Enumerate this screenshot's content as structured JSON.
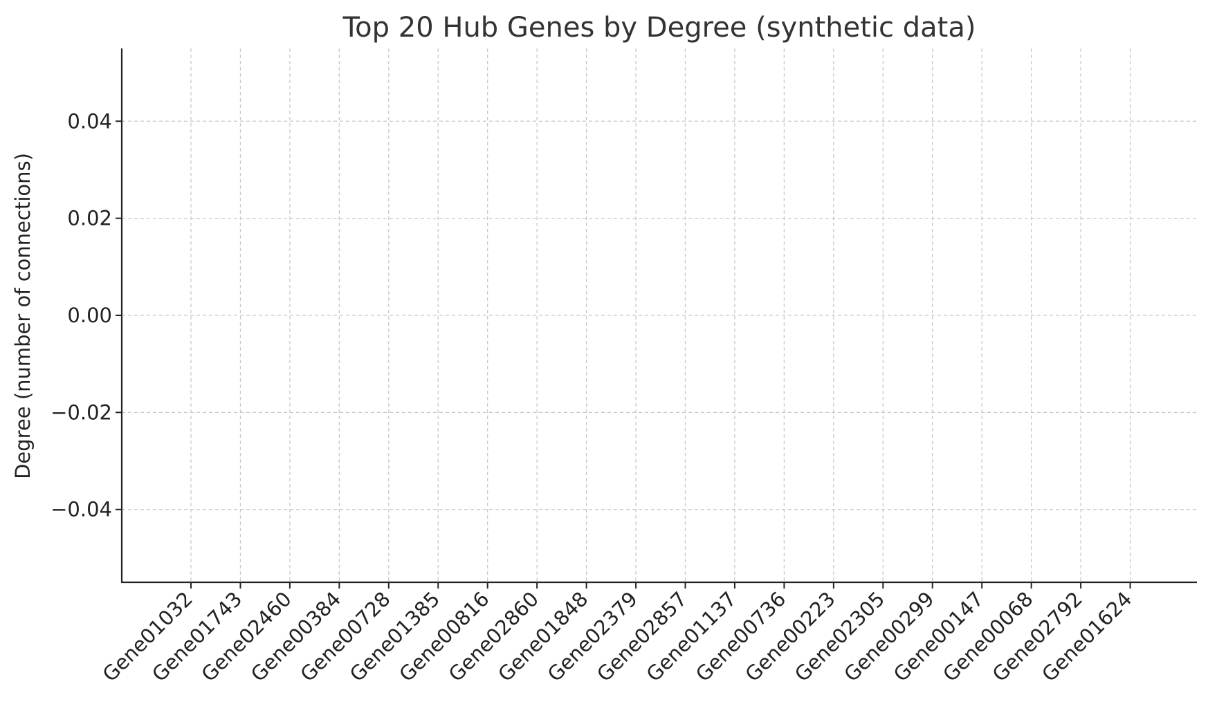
{
  "chart_data": {
    "type": "bar",
    "title": "Top 20 Hub Genes by Degree (synthetic data)",
    "xlabel": "",
    "ylabel": "Degree (number of connections)",
    "categories": [
      "Gene01032",
      "Gene01743",
      "Gene02460",
      "Gene00384",
      "Gene00728",
      "Gene01385",
      "Gene00816",
      "Gene02860",
      "Gene01848",
      "Gene02379",
      "Gene02857",
      "Gene01137",
      "Gene00736",
      "Gene00223",
      "Gene02305",
      "Gene00299",
      "Gene00147",
      "Gene00068",
      "Gene02792",
      "Gene01624"
    ],
    "values": [
      0,
      0,
      0,
      0,
      0,
      0,
      0,
      0,
      0,
      0,
      0,
      0,
      0,
      0,
      0,
      0,
      0,
      0,
      0,
      0
    ],
    "ylim": [
      -0.055,
      0.055
    ],
    "yticks": [
      -0.04,
      -0.02,
      0.0,
      0.02,
      0.04
    ],
    "ytick_labels": [
      "−0.04",
      "−0.02",
      "0.00",
      "0.02",
      "0.04"
    ],
    "grid": true,
    "legend": "none",
    "colors": {
      "grid": "#c8c8c8",
      "spine": "#222222",
      "text": "#222222",
      "title": "#333333"
    }
  }
}
